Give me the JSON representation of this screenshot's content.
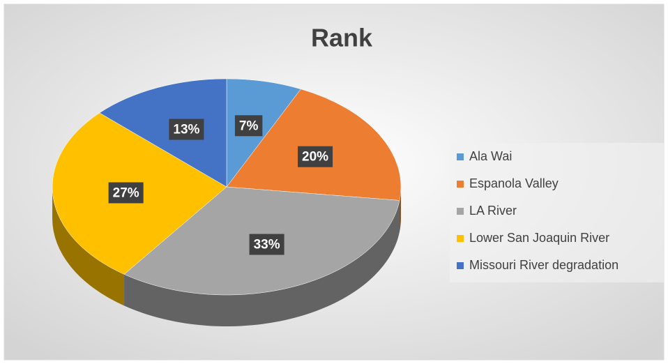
{
  "chart_data": {
    "type": "pie",
    "title": "Rank",
    "categories": [
      "Ala Wai",
      "Espanola Valley",
      "LA River",
      "Lower San Joaquin River",
      "Missouri River degradation"
    ],
    "values": [
      7,
      20,
      33,
      27,
      13
    ],
    "value_labels": [
      "7%",
      "20%",
      "33%",
      "27%",
      "13%"
    ],
    "colors": [
      "#5b9bd5",
      "#ed7d31",
      "#a5a5a5",
      "#ffc000",
      "#4472c4"
    ],
    "legend": "right"
  }
}
